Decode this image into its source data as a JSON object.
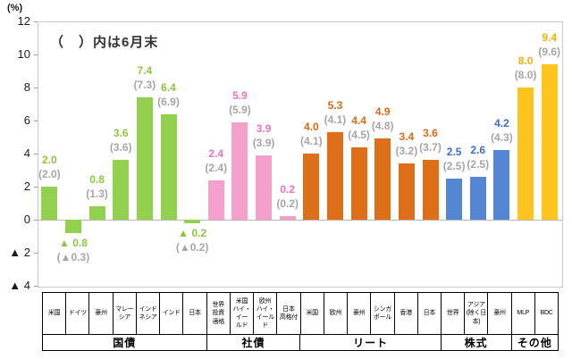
{
  "chart_data": {
    "type": "bar",
    "title": "（　）内は6月末",
    "unit_label": "(%)",
    "note": "values in parentheses are as of end of June; ▲ denotes negative",
    "ylim": [
      -4,
      12
    ],
    "grid": false,
    "legend_position": "none",
    "yticks": [
      {
        "v": 12,
        "label": "12"
      },
      {
        "v": 10,
        "label": "10"
      },
      {
        "v": 8,
        "label": "8"
      },
      {
        "v": 6,
        "label": "6"
      },
      {
        "v": 4,
        "label": "4"
      },
      {
        "v": 2,
        "label": "2"
      },
      {
        "v": 0,
        "label": "0"
      },
      {
        "v": -2,
        "label": "▲ 2"
      },
      {
        "v": -4,
        "label": "▲ 4"
      }
    ],
    "groups": [
      {
        "label": "国債",
        "color": "#92D050",
        "label_color": "#8CC63C",
        "items": [
          {
            "name": "米国",
            "cell_lines": [
              "米国"
            ],
            "value": 2.0,
            "prev": 2.0,
            "value_label": "2.0",
            "prev_label": "(2.0)"
          },
          {
            "name": "ドイツ",
            "cell_lines": [
              "ドイツ"
            ],
            "value": -0.8,
            "prev": -0.3,
            "value_label": "▲ 0.8",
            "prev_label": "(▲0.3)"
          },
          {
            "name": "豪州",
            "cell_lines": [
              "豪州"
            ],
            "value": 0.8,
            "prev": 1.3,
            "value_label": "0.8",
            "prev_label": "(1.3)"
          },
          {
            "name": "マレーシア",
            "cell_lines": [
              "マレー",
              "シア"
            ],
            "value": 3.6,
            "prev": 3.6,
            "value_label": "3.6",
            "prev_label": "(3.6)"
          },
          {
            "name": "インドネシア",
            "cell_lines": [
              "インド",
              "ネシア"
            ],
            "value": 7.4,
            "prev": 7.3,
            "value_label": "7.4",
            "prev_label": "(7.3)"
          },
          {
            "name": "インド",
            "cell_lines": [
              "インド"
            ],
            "value": 6.4,
            "prev": 6.9,
            "value_label": "6.4",
            "prev_label": "(6.9)"
          },
          {
            "name": "日本",
            "cell_lines": [
              "日本"
            ],
            "value": -0.2,
            "prev": -0.2,
            "value_label": "▲ 0.2",
            "prev_label": "(▲0.2)"
          }
        ]
      },
      {
        "label": "社債",
        "color": "#F59FCB",
        "label_color": "#F172BB",
        "items": [
          {
            "name": "世界投資適格",
            "cell_lines": [
              "世界",
              "投資",
              "適格"
            ],
            "value": 2.4,
            "prev": 2.4,
            "value_label": "2.4",
            "prev_label": "(2.4)"
          },
          {
            "name": "米国ハイ・イールド",
            "cell_lines": [
              "米国",
              "ハイ・イー",
              "ルド"
            ],
            "value": 5.9,
            "prev": 5.9,
            "value_label": "5.9",
            "prev_label": "(5.9)"
          },
          {
            "name": "欧州ハイ・イールド",
            "cell_lines": [
              "欧州",
              "ハイ・",
              "イールド"
            ],
            "value": 3.9,
            "prev": 3.9,
            "value_label": "3.9",
            "prev_label": "(3.9)"
          },
          {
            "name": "日本高格付",
            "cell_lines": [
              "日本",
              "高格付"
            ],
            "value": 0.2,
            "prev": 0.2,
            "value_label": "0.2",
            "prev_label": "(0.2)"
          }
        ]
      },
      {
        "label": "リート",
        "color": "#DE6E17",
        "label_color": "#D96A12",
        "items": [
          {
            "name": "米国",
            "cell_lines": [
              "米国"
            ],
            "value": 4.0,
            "prev": 4.1,
            "value_label": "4.0",
            "prev_label": "(4.1)"
          },
          {
            "name": "欧州",
            "cell_lines": [
              "欧州"
            ],
            "value": 5.3,
            "prev": 4.1,
            "value_label": "5.3",
            "prev_label": "(4.1)"
          },
          {
            "name": "豪州",
            "cell_lines": [
              "豪州"
            ],
            "value": 4.4,
            "prev": 4.5,
            "value_label": "4.4",
            "prev_label": "(4.5)"
          },
          {
            "name": "シンガポール",
            "cell_lines": [
              "シンガ",
              "ポール"
            ],
            "value": 4.9,
            "prev": 4.8,
            "value_label": "4.9",
            "prev_label": "(4.8)"
          },
          {
            "name": "香港",
            "cell_lines": [
              "香港"
            ],
            "value": 3.4,
            "prev": 3.2,
            "value_label": "3.4",
            "prev_label": "(3.2)"
          },
          {
            "name": "日本",
            "cell_lines": [
              "日本"
            ],
            "value": 3.6,
            "prev": 3.7,
            "value_label": "3.6",
            "prev_label": "(3.7)"
          }
        ]
      },
      {
        "label": "株式",
        "color": "#5586D2",
        "label_color": "#3A6EC4",
        "items": [
          {
            "name": "世界",
            "cell_lines": [
              "世界"
            ],
            "value": 2.5,
            "prev": 2.5,
            "value_label": "2.5",
            "prev_label": "(2.5)"
          },
          {
            "name": "アジア(除く日本)",
            "cell_lines": [
              "アジア",
              "(除く日",
              "本)"
            ],
            "value": 2.6,
            "prev": 2.5,
            "value_label": "2.6",
            "prev_label": "(2.5)"
          },
          {
            "name": "豪州",
            "cell_lines": [
              "豪州"
            ],
            "value": 4.2,
            "prev": 4.3,
            "value_label": "4.2",
            "prev_label": "(4.3)"
          }
        ]
      },
      {
        "label": "その他",
        "color": "#FFC41E",
        "label_color": "#F0B400",
        "items": [
          {
            "name": "MLP",
            "cell_lines": [
              "MLP"
            ],
            "value": 8.0,
            "prev": 8.0,
            "value_label": "8.0",
            "prev_label": "(8.0)"
          },
          {
            "name": "BDC",
            "cell_lines": [
              "BDC"
            ],
            "value": 9.4,
            "prev": 9.6,
            "value_label": "9.4",
            "prev_label": "(9.6)"
          }
        ]
      }
    ],
    "colors": {
      "paren_label": "#A6A6A6",
      "axis_text": "#1A1A1A",
      "plot_border": "#C9C9C9",
      "zero_line": "#B5B5B5",
      "table_border": "#000000"
    }
  }
}
